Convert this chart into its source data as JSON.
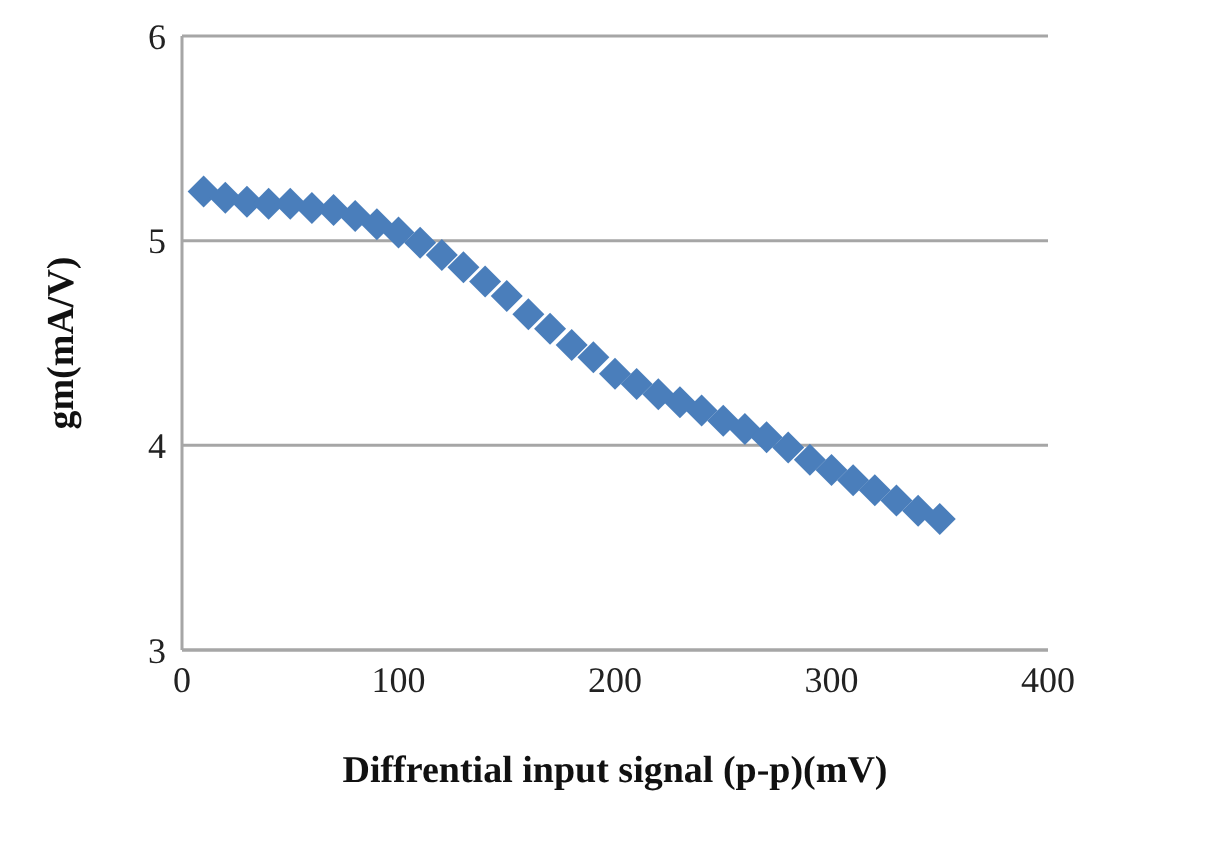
{
  "chart_data": {
    "type": "scatter",
    "xlabel": "Diffrential input signal (p-p)(mV)",
    "ylabel": "gm(mA/V)",
    "x": [
      10,
      20,
      30,
      40,
      50,
      60,
      70,
      80,
      90,
      100,
      110,
      120,
      130,
      140,
      150,
      160,
      170,
      180,
      190,
      200,
      210,
      220,
      230,
      240,
      250,
      260,
      270,
      280,
      290,
      300,
      310,
      320,
      330,
      340,
      350
    ],
    "series": [
      {
        "color": "#4a7ebb",
        "values": [
          5.24,
          5.21,
          5.19,
          5.18,
          5.18,
          5.16,
          5.15,
          5.12,
          5.08,
          5.04,
          4.99,
          4.93,
          4.87,
          4.8,
          4.73,
          4.64,
          4.57,
          4.49,
          4.43,
          4.35,
          4.3,
          4.25,
          4.21,
          4.17,
          4.12,
          4.08,
          4.04,
          3.99,
          3.93,
          3.88,
          3.83,
          3.78,
          3.73,
          3.68,
          3.64
        ]
      }
    ],
    "xlim": [
      0,
      400
    ],
    "xticks": [
      0,
      100,
      200,
      300,
      400
    ],
    "ylim": [
      3,
      6
    ],
    "yticks": [
      3,
      4,
      5,
      6
    ],
    "grid": "y",
    "marker": "diamond"
  }
}
